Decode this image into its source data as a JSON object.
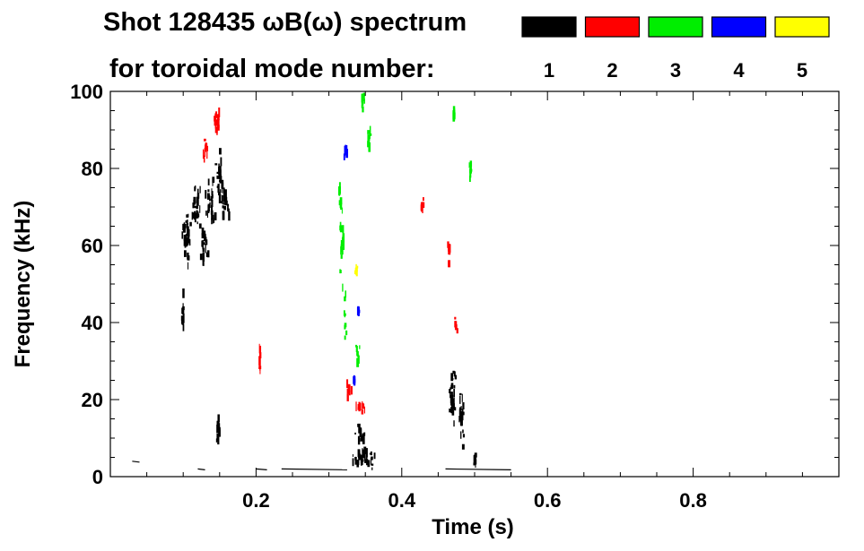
{
  "chart_data": {
    "type": "scatter",
    "title_line1": "Shot 128435 ωB(ω) spectrum",
    "title_line2": "for toroidal mode number:",
    "xlabel": "Time (s)",
    "ylabel": "Frequency (kHz)",
    "xlim": [
      0.0,
      1.0
    ],
    "ylim": [
      0,
      100
    ],
    "x_ticks": [
      0.2,
      0.4,
      0.6,
      0.8
    ],
    "x_tick_labels": [
      "0.2",
      "0.4",
      "0.6",
      "0.8"
    ],
    "y_ticks": [
      0,
      20,
      40,
      60,
      80,
      100
    ],
    "y_tick_labels": [
      "0",
      "20",
      "40",
      "60",
      "80",
      "100"
    ],
    "legend": [
      {
        "label": "1",
        "color": "#000000"
      },
      {
        "label": "2",
        "color": "#ff0000"
      },
      {
        "label": "3",
        "color": "#00ee00"
      },
      {
        "label": "4",
        "color": "#0000ff"
      },
      {
        "label": "5",
        "color": "#ffff00"
      }
    ],
    "series": [
      {
        "name": "n=1",
        "mode": 1,
        "color": "#000000",
        "blobs": [
          {
            "t": 0.105,
            "f": 62,
            "dt": 0.008,
            "df": 10
          },
          {
            "t": 0.118,
            "f": 70,
            "dt": 0.008,
            "df": 7
          },
          {
            "t": 0.128,
            "f": 60,
            "dt": 0.007,
            "df": 8
          },
          {
            "t": 0.138,
            "f": 72,
            "dt": 0.008,
            "df": 8
          },
          {
            "t": 0.15,
            "f": 78,
            "dt": 0.007,
            "df": 8
          },
          {
            "t": 0.158,
            "f": 71,
            "dt": 0.009,
            "df": 6
          },
          {
            "t": 0.1,
            "f": 42,
            "dt": 0.004,
            "df": 7
          },
          {
            "t": 0.148,
            "f": 12,
            "dt": 0.004,
            "df": 6
          },
          {
            "t": 0.348,
            "f": 5,
            "dt": 0.022,
            "df": 4
          },
          {
            "t": 0.343,
            "f": 11,
            "dt": 0.011,
            "df": 3
          },
          {
            "t": 0.47,
            "f": 20,
            "dt": 0.006,
            "df": 12
          },
          {
            "t": 0.482,
            "f": 15,
            "dt": 0.005,
            "df": 10
          },
          {
            "t": 0.5,
            "f": 4,
            "dt": 0.003,
            "df": 3
          }
        ]
      },
      {
        "name": "n=2",
        "mode": 2,
        "color": "#ff0000",
        "blobs": [
          {
            "t": 0.145,
            "f": 92,
            "dt": 0.006,
            "df": 5
          },
          {
            "t": 0.13,
            "f": 85,
            "dt": 0.006,
            "df": 4
          },
          {
            "t": 0.328,
            "f": 22,
            "dt": 0.006,
            "df": 3
          },
          {
            "t": 0.343,
            "f": 18,
            "dt": 0.009,
            "df": 3
          },
          {
            "t": 0.205,
            "f": 30,
            "dt": 0.002,
            "df": 4
          },
          {
            "t": 0.465,
            "f": 58,
            "dt": 0.003,
            "df": 5
          },
          {
            "t": 0.475,
            "f": 40,
            "dt": 0.003,
            "df": 4
          },
          {
            "t": 0.428,
            "f": 70,
            "dt": 0.003,
            "df": 5
          }
        ]
      },
      {
        "name": "n=3",
        "mode": 3,
        "color": "#00ee00",
        "blobs": [
          {
            "t": 0.318,
            "f": 60,
            "dt": 0.004,
            "df": 15
          },
          {
            "t": 0.322,
            "f": 42,
            "dt": 0.003,
            "df": 8
          },
          {
            "t": 0.315,
            "f": 73,
            "dt": 0.003,
            "df": 4
          },
          {
            "t": 0.34,
            "f": 32,
            "dt": 0.004,
            "df": 4
          },
          {
            "t": 0.355,
            "f": 88,
            "dt": 0.004,
            "df": 4
          },
          {
            "t": 0.347,
            "f": 97,
            "dt": 0.003,
            "df": 3
          },
          {
            "t": 0.494,
            "f": 80,
            "dt": 0.002,
            "df": 3
          },
          {
            "t": 0.472,
            "f": 94,
            "dt": 0.002,
            "df": 3
          }
        ]
      },
      {
        "name": "n=4",
        "mode": 4,
        "color": "#0000ff",
        "blobs": [
          {
            "t": 0.323,
            "f": 84,
            "dt": 0.003,
            "df": 3
          },
          {
            "t": 0.341,
            "f": 43,
            "dt": 0.002,
            "df": 1
          },
          {
            "t": 0.335,
            "f": 25,
            "dt": 0.002,
            "df": 1
          }
        ]
      },
      {
        "name": "n=5",
        "mode": 5,
        "color": "#ffff00",
        "blobs": [
          {
            "t": 0.338,
            "f": 54,
            "dt": 0.002,
            "df": 2
          }
        ]
      }
    ],
    "baseline_segments": [
      {
        "t0": 0.03,
        "t1": 0.04,
        "f": 4
      },
      {
        "t0": 0.12,
        "t1": 0.13,
        "f": 2
      },
      {
        "t0": 0.2,
        "t1": 0.215,
        "f": 2
      },
      {
        "t0": 0.235,
        "t1": 0.325,
        "f": 2
      },
      {
        "t0": 0.46,
        "t1": 0.55,
        "f": 2
      }
    ]
  }
}
